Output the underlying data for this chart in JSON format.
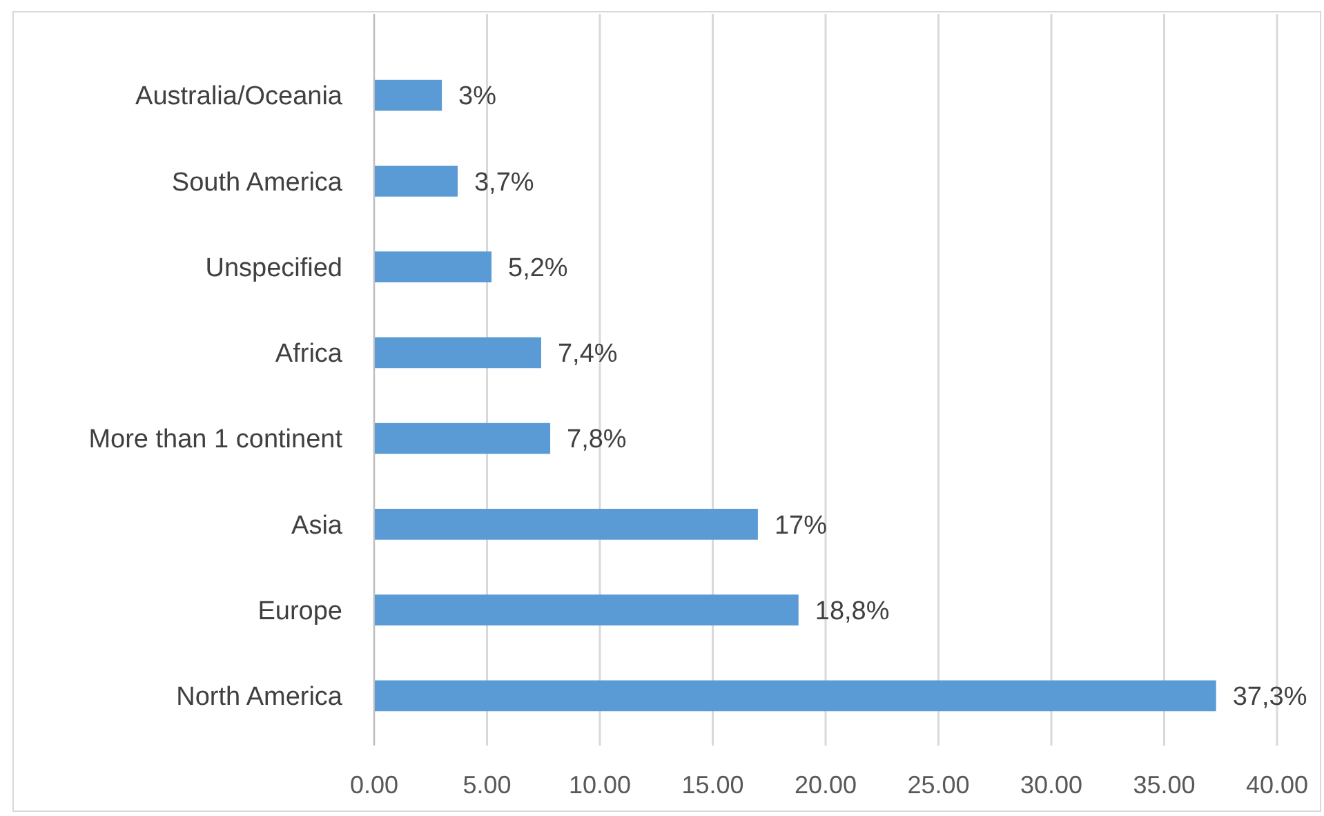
{
  "chart_data": {
    "type": "bar",
    "orientation": "horizontal",
    "categories": [
      "Australia/Oceania",
      "South America",
      "Unspecified",
      "Africa",
      "More than 1 continent",
      "Asia",
      "Europe",
      "North America"
    ],
    "values": [
      3,
      3.7,
      5.2,
      7.4,
      7.8,
      17,
      18.8,
      37.3
    ],
    "value_labels": [
      "3%",
      "3,7%",
      "5,2%",
      "7,4%",
      "7,8%",
      "17%",
      "18,8%",
      "37,3%"
    ],
    "color": "#5b9bd5",
    "xlim": [
      0,
      40
    ],
    "xticks": [
      {
        "value": 0,
        "label": "0.00"
      },
      {
        "value": 5,
        "label": "5.00"
      },
      {
        "value": 10,
        "label": "10.00"
      },
      {
        "value": 15,
        "label": "15.00"
      },
      {
        "value": 20,
        "label": "20.00"
      },
      {
        "value": 25,
        "label": "25.00"
      },
      {
        "value": 30,
        "label": "30.00"
      },
      {
        "value": 35,
        "label": "35.00"
      },
      {
        "value": 40,
        "label": "40.00"
      }
    ],
    "grid": "x"
  }
}
